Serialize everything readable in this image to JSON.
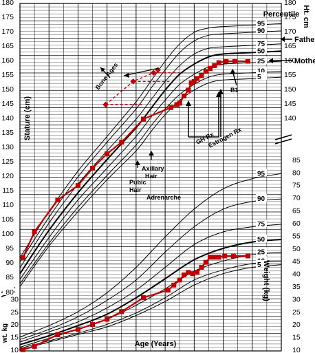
{
  "chart_data": {
    "type": "line",
    "axes": {
      "x": {
        "label": "Age (Years)",
        "range": [
          2,
          20
        ]
      },
      "stature": {
        "label": "Stature (cm)",
        "right_label": "Ht. cm",
        "range": [
          80,
          180
        ],
        "left_ticks": [
          85,
          90,
          95,
          100,
          105,
          110,
          115,
          120,
          125,
          130,
          135,
          140,
          145,
          150,
          155,
          160,
          165,
          170,
          175,
          180
        ],
        "left_break_label": "80",
        "right_ticks": [
          140,
          145,
          150,
          155,
          160,
          165,
          170,
          175,
          180
        ]
      },
      "weight": {
        "label": "Weight (kg)",
        "left_label": "wt. kg",
        "range": [
          10,
          90
        ],
        "left_ticks": [
          10,
          15,
          20,
          25,
          30
        ],
        "right_ticks": [
          10,
          15,
          20,
          25,
          30,
          35,
          40,
          45,
          50,
          55,
          60,
          65,
          70,
          75,
          80,
          85
        ]
      }
    },
    "stature_percentile_header": "Percentile",
    "stature_percentiles": [
      {
        "label": "95",
        "ages": [
          2,
          4,
          6,
          8,
          10,
          11,
          12,
          13,
          14,
          15,
          16,
          18,
          20
        ],
        "values": [
          92,
          108,
          122,
          134,
          146,
          153,
          160,
          166,
          170,
          171.5,
          172,
          172.5,
          173
        ]
      },
      {
        "label": "90",
        "ages": [
          2,
          4,
          6,
          8,
          10,
          11,
          12,
          13,
          14,
          15,
          16,
          18,
          20
        ],
        "values": [
          90.5,
          106,
          120,
          132,
          143.5,
          150.5,
          157,
          163,
          167,
          169,
          169.5,
          170,
          170.5
        ]
      },
      {
        "label": "75",
        "ages": [
          2,
          4,
          6,
          8,
          10,
          11,
          12,
          13,
          14,
          15,
          16,
          18,
          20
        ],
        "values": [
          88.5,
          104,
          117.5,
          129,
          140,
          146.5,
          153,
          158.5,
          162.5,
          164.5,
          165,
          165.5,
          166
        ]
      },
      {
        "label": "50",
        "ages": [
          2,
          4,
          6,
          8,
          10,
          11,
          12,
          13,
          14,
          15,
          16,
          18,
          20
        ],
        "values": [
          86.5,
          101.5,
          114.5,
          126,
          137,
          143.5,
          150,
          155.5,
          159,
          161.5,
          162.5,
          163,
          163.5
        ]
      },
      {
        "label": "25",
        "ages": [
          2,
          4,
          6,
          8,
          10,
          11,
          12,
          13,
          14,
          15,
          16,
          18,
          20
        ],
        "values": [
          84.5,
          99,
          112,
          123,
          134,
          140.5,
          146.5,
          152,
          155.5,
          158,
          159,
          159.5,
          160
        ]
      },
      {
        "label": "10",
        "ages": [
          2,
          4,
          6,
          8,
          10,
          11,
          12,
          13,
          14,
          15,
          16,
          18,
          20
        ],
        "values": [
          83,
          97,
          109.5,
          120.5,
          131,
          137.5,
          143.5,
          148.5,
          152,
          154.5,
          155.5,
          156,
          156.5
        ]
      },
      {
        "label": "5",
        "ages": [
          2,
          4,
          6,
          8,
          10,
          11,
          12,
          13,
          14,
          15,
          16,
          18,
          20
        ],
        "values": [
          82,
          96,
          108,
          119,
          129,
          135.5,
          141.5,
          146.5,
          150,
          152.5,
          153.5,
          154,
          154.5
        ]
      }
    ],
    "weight_percentiles": [
      {
        "label": "95",
        "ages": [
          2,
          4,
          6,
          8,
          10,
          12,
          14,
          16,
          18,
          20
        ],
        "values": [
          15.5,
          20,
          25.5,
          33,
          43,
          55,
          66,
          74,
          78,
          80
        ]
      },
      {
        "label": "90",
        "ages": [
          2,
          4,
          6,
          8,
          10,
          12,
          14,
          16,
          18,
          20
        ],
        "values": [
          14.5,
          18.5,
          23.5,
          30,
          38,
          49,
          59,
          66,
          69,
          70
        ]
      },
      {
        "label": "75",
        "ages": [
          2,
          4,
          6,
          8,
          10,
          12,
          14,
          16,
          18,
          20
        ],
        "values": [
          13.5,
          17.5,
          21.5,
          27,
          34,
          43,
          52,
          57,
          59,
          60
        ]
      },
      {
        "label": "50",
        "ages": [
          2,
          4,
          6,
          8,
          10,
          12,
          14,
          16,
          18,
          20
        ],
        "values": [
          12.5,
          16,
          20,
          24.5,
          31,
          38.5,
          46,
          50.5,
          53,
          54
        ]
      },
      {
        "label": "25",
        "ages": [
          2,
          4,
          6,
          8,
          10,
          12,
          14,
          16,
          18,
          20
        ],
        "values": [
          11.5,
          15,
          18.5,
          22.5,
          28,
          34.5,
          41.5,
          45.5,
          48,
          49
        ]
      },
      {
        "label": "10",
        "ages": [
          2,
          4,
          6,
          8,
          10,
          12,
          14,
          16,
          18,
          20
        ],
        "values": [
          11,
          14,
          17,
          20.5,
          25,
          31,
          38,
          42,
          44.5,
          45.5
        ]
      },
      {
        "label": "5",
        "ages": [
          2,
          4,
          6,
          8,
          10,
          12,
          14,
          16,
          18,
          20
        ],
        "values": [
          10.5,
          13.5,
          16.5,
          19.5,
          24,
          29.5,
          36,
          40.5,
          43,
          44
        ]
      }
    ],
    "patient_stature": {
      "ages": [
        2.2,
        3,
        4.6,
        6,
        7,
        8,
        9,
        10.5,
        12.4,
        12.8,
        13,
        13.3,
        13.6,
        13.8,
        14,
        14.2,
        14.5,
        14.8,
        15.1,
        15.4,
        15.7,
        16.2,
        16.8,
        17.7
      ],
      "values": [
        92,
        101,
        112,
        117,
        123,
        128,
        132,
        140,
        144,
        145,
        145.5,
        148,
        150,
        152.5,
        153,
        154,
        155,
        156.5,
        157.5,
        158.5,
        159.5,
        160,
        160,
        160
      ]
    },
    "patient_weight": {
      "ages": [
        2.2,
        3,
        4.6,
        6,
        7,
        8,
        9,
        10.5,
        12.2,
        12.6,
        13,
        13.3,
        13.6,
        13.9,
        14.2,
        14.5,
        14.8,
        15.1,
        15.4,
        15.7,
        16.1,
        16.7,
        17.7
      ],
      "values": [
        10.5,
        11.8,
        16.5,
        18.5,
        20.5,
        22.5,
        25.5,
        31,
        34,
        36,
        38,
        40,
        41,
        40.5,
        41,
        43,
        45,
        47,
        47,
        47,
        47.5,
        47.5,
        47.5
      ]
    },
    "bone_ages": {
      "label": "Bone Ages",
      "chronological_ages": [
        10.5,
        12.3,
        13
      ],
      "bone_ages": [
        7.9,
        9.8,
        11.2
      ],
      "statures": [
        145,
        153,
        156
      ],
      "extra_point": {
        "age": 11.5,
        "stature": 157
      }
    },
    "parental_heights": [
      {
        "label": "Father",
        "stature": 167
      },
      {
        "label": "Mother",
        "stature": 160
      }
    ],
    "annotations": {
      "pubic_hair": "Pubic Hair",
      "axillary_hair": "Axillary Hair",
      "adrenarche": "Adrenarche",
      "gh_rx": "GH Rx",
      "estrogen_rx": "Estrogen Rx",
      "b1": "B1"
    },
    "colors": {
      "patient": "#c00000",
      "grid": "#000000",
      "curves": "#000000"
    }
  }
}
